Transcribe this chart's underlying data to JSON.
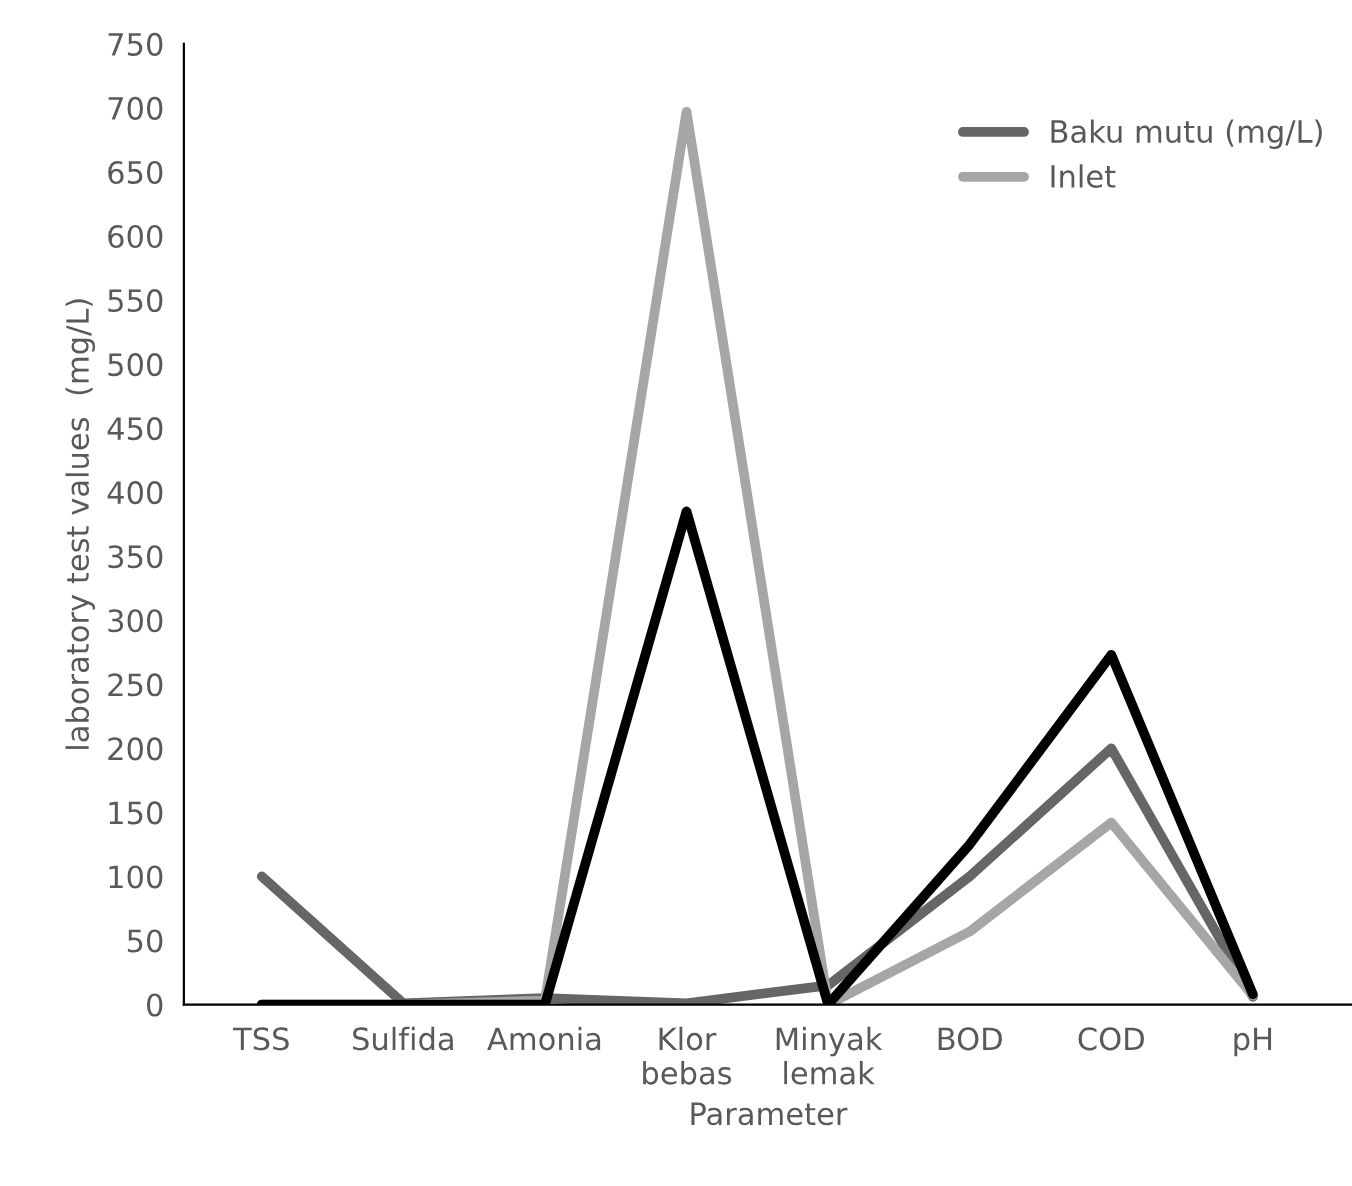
{
  "chart_data": {
    "type": "line",
    "xlabel": "Parameter",
    "ylabel": "laboratory test values  (mg/L)",
    "categories": [
      "TSS",
      "Sulfida",
      "Amonia",
      "Klor\nbebas",
      "Minyak\nlemak",
      "BOD",
      "COD",
      "pH"
    ],
    "series": [
      {
        "name": "Baku mutu (mg/L)",
        "color": "#666666",
        "values": [
          100,
          1,
          5,
          1,
          15,
          100,
          200,
          6
        ]
      },
      {
        "name": "Inlet",
        "color": "#a6a6a6",
        "values": [
          0,
          0,
          3,
          697,
          0,
          57,
          142,
          7
        ]
      },
      {
        "color": "#000000",
        "values": [
          0,
          0,
          0,
          385,
          0,
          125,
          273,
          8
        ]
      }
    ],
    "ylim": [
      0,
      750
    ],
    "yticks": [
      0,
      50,
      100,
      150,
      200,
      250,
      300,
      350,
      400,
      450,
      500,
      550,
      600,
      650,
      700,
      750
    ],
    "grid": false,
    "legend": "top right",
    "marker": "none",
    "line_style": "solid"
  }
}
